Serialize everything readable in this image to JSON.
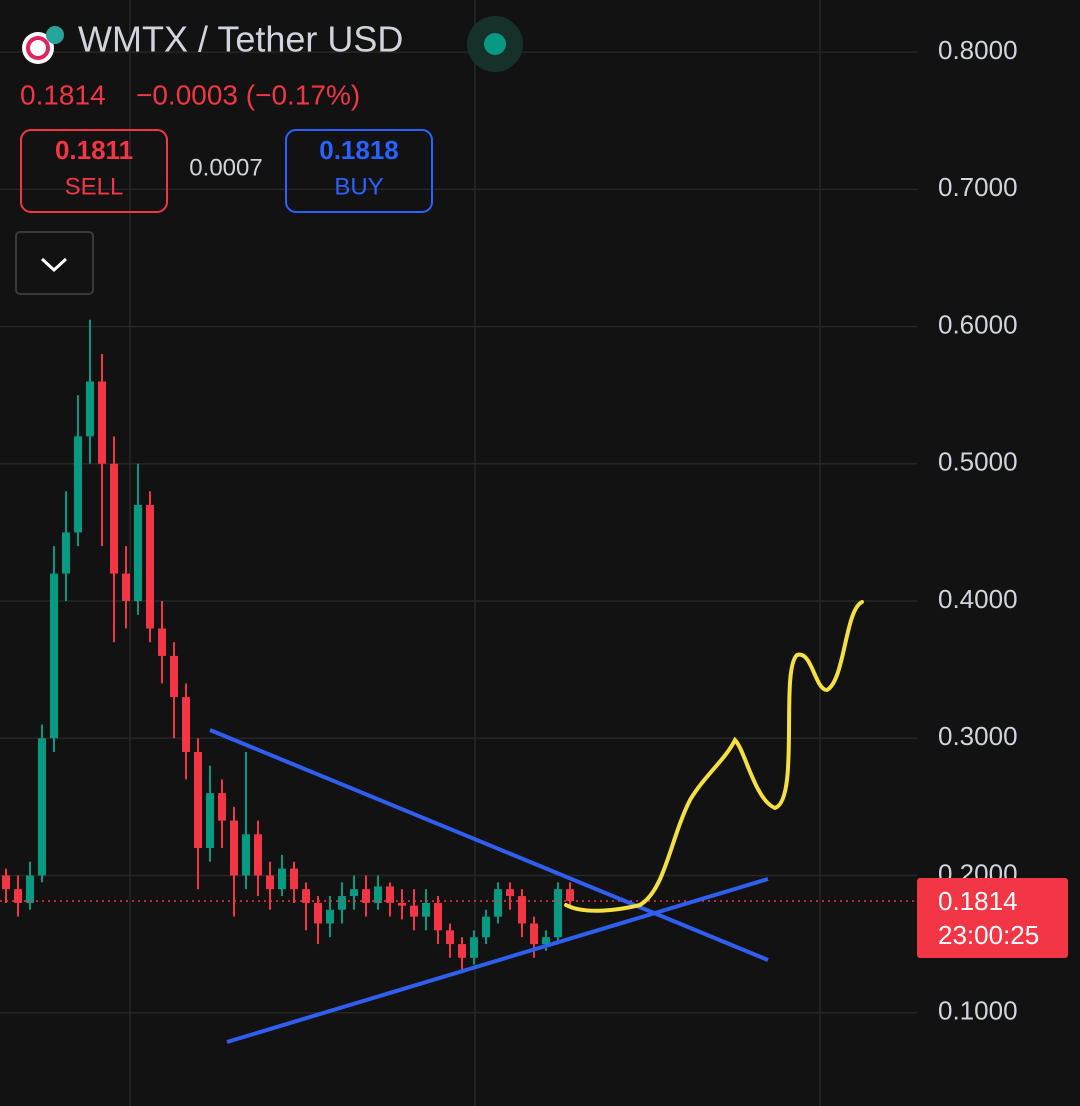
{
  "header": {
    "title": "WMTX / Tether USD",
    "last_price": "0.1814",
    "change": "−0.0003 (−0.17%)",
    "sell": {
      "price": "0.1811",
      "label": "SELL"
    },
    "spread": "0.0007",
    "buy": {
      "price": "0.1818",
      "label": "BUY"
    }
  },
  "price_tag": {
    "price": {
      "value": 0.1814,
      "label": "0.1814"
    },
    "countdown": "23:00:25"
  },
  "chart_data": {
    "type": "candlestick",
    "up_color": "#089981",
    "down_color": "#f23645",
    "open": [
      0.2,
      0.19,
      0.18,
      0.2,
      0.3,
      0.42,
      0.45,
      0.52,
      0.56,
      0.5,
      0.42,
      0.4,
      0.47,
      0.38,
      0.36,
      0.33,
      0.29,
      0.22,
      0.26,
      0.24,
      0.2,
      0.23,
      0.2,
      0.19,
      0.205,
      0.19,
      0.18,
      0.165,
      0.175,
      0.185,
      0.19,
      0.18,
      0.192,
      0.18,
      0.178,
      0.17,
      0.18,
      0.16,
      0.15,
      0.14,
      0.155,
      0.17,
      0.19,
      0.185,
      0.165,
      0.15,
      0.155,
      0.19
    ],
    "high": [
      0.205,
      0.2,
      0.21,
      0.31,
      0.44,
      0.48,
      0.55,
      0.605,
      0.58,
      0.52,
      0.44,
      0.5,
      0.48,
      0.4,
      0.37,
      0.34,
      0.3,
      0.28,
      0.27,
      0.25,
      0.29,
      0.24,
      0.21,
      0.215,
      0.21,
      0.195,
      0.185,
      0.185,
      0.195,
      0.2,
      0.2,
      0.2,
      0.195,
      0.19,
      0.19,
      0.19,
      0.185,
      0.165,
      0.155,
      0.16,
      0.175,
      0.195,
      0.195,
      0.19,
      0.17,
      0.16,
      0.195,
      0.195
    ],
    "low": [
      0.18,
      0.17,
      0.175,
      0.195,
      0.29,
      0.4,
      0.44,
      0.5,
      0.44,
      0.37,
      0.38,
      0.39,
      0.37,
      0.34,
      0.3,
      0.27,
      0.19,
      0.21,
      0.22,
      0.17,
      0.19,
      0.185,
      0.175,
      0.185,
      0.18,
      0.16,
      0.15,
      0.155,
      0.165,
      0.175,
      0.17,
      0.175,
      0.17,
      0.168,
      0.16,
      0.16,
      0.15,
      0.14,
      0.13,
      0.135,
      0.15,
      0.165,
      0.175,
      0.155,
      0.14,
      0.145,
      0.15,
      0.178
    ],
    "close": [
      0.19,
      0.18,
      0.2,
      0.3,
      0.42,
      0.45,
      0.52,
      0.56,
      0.5,
      0.42,
      0.4,
      0.47,
      0.38,
      0.36,
      0.33,
      0.29,
      0.22,
      0.26,
      0.24,
      0.2,
      0.23,
      0.2,
      0.19,
      0.205,
      0.19,
      0.18,
      0.165,
      0.175,
      0.185,
      0.19,
      0.18,
      0.192,
      0.18,
      0.178,
      0.17,
      0.18,
      0.16,
      0.15,
      0.14,
      0.155,
      0.17,
      0.19,
      0.185,
      0.165,
      0.15,
      0.155,
      0.19,
      0.1814
    ],
    "ylim": [
      0.032,
      0.838
    ],
    "yticks": [
      {
        "value": 0.8,
        "label": "0.8000"
      },
      {
        "value": 0.7,
        "label": "0.7000"
      },
      {
        "value": 0.6,
        "label": "0.6000"
      },
      {
        "value": 0.5,
        "label": "0.5000"
      },
      {
        "value": 0.4,
        "label": "0.4000"
      },
      {
        "value": 0.3,
        "label": "0.3000"
      },
      {
        "value": 0.2,
        "label": "0.2000"
      },
      {
        "value": 0.1,
        "label": "0.1000"
      }
    ],
    "grid": true
  }
}
